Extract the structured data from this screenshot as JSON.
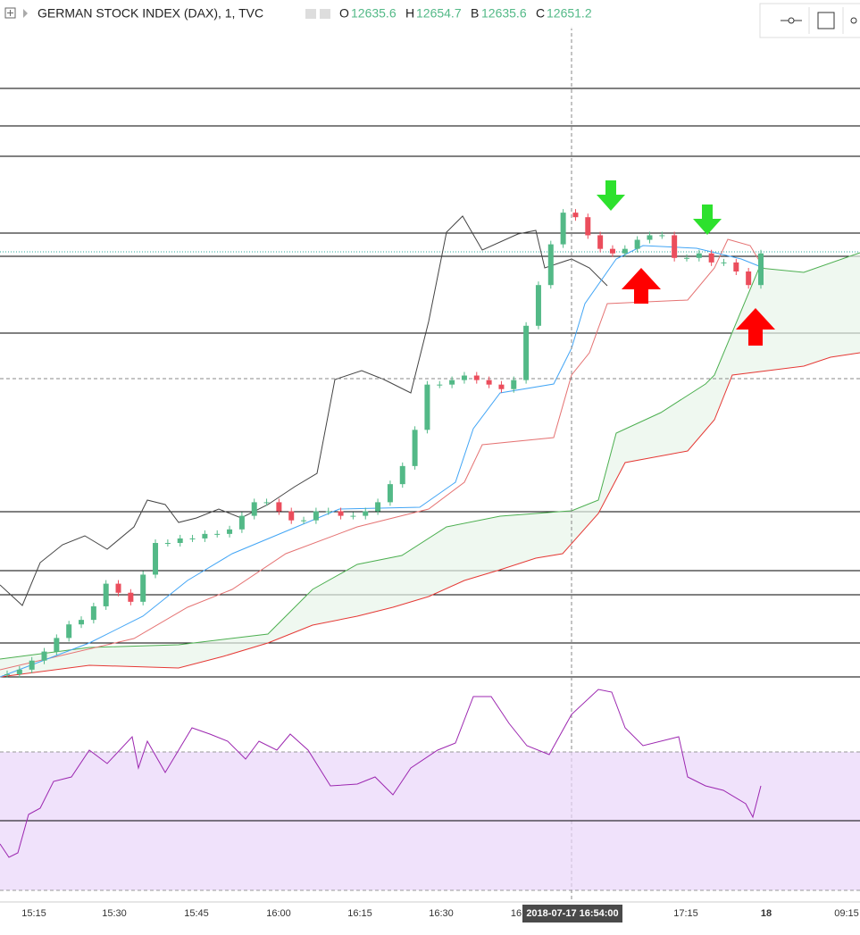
{
  "header": {
    "title": "GERMAN STOCK INDEX (DAX), 1, TVC",
    "o_label": "O",
    "o": "12635.6",
    "h_label": "H",
    "h": "12654.7",
    "b_label": "B",
    "b": "12635.6",
    "c_label": "C",
    "c": "12651.2"
  },
  "time_axis": {
    "labels": [
      "15:15",
      "15:30",
      "15:45",
      "16:00",
      "16:15",
      "16:30",
      "16",
      "17:15",
      "18",
      "09:15"
    ],
    "cursor": "2018-07-17 16:54:00"
  },
  "chart_data": {
    "type": "candlestick",
    "ylim": [
      12557,
      12707
    ],
    "up_color": "#53b987",
    "down_color": "#eb4d5c",
    "values": [
      12558,
      12559,
      12561,
      12563,
      12566,
      12569,
      12570,
      12573,
      12578,
      12576,
      12574,
      12580,
      12587,
      12587,
      12588,
      12588,
      12589,
      12589,
      12590,
      12593,
      12596,
      12596,
      12594,
      12592,
      12592,
      12594,
      12594,
      12593,
      12593,
      12594,
      12596,
      12600,
      12604,
      12612,
      12622,
      12622,
      12623,
      12624,
      12623,
      12622,
      12621,
      12623,
      12635,
      12644,
      12653,
      12660,
      12659,
      12655,
      12652,
      12651,
      12652,
      12654,
      12655,
      12655,
      12650,
      12650,
      12651,
      12649,
      12649,
      12647,
      12644,
      12651
    ]
  }
}
